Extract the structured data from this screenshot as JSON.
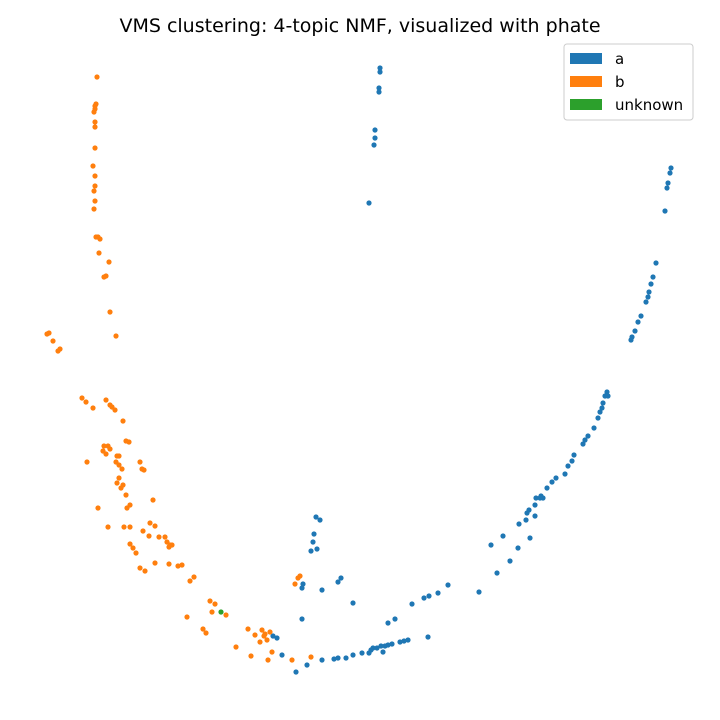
{
  "chart_data": {
    "type": "scatter",
    "title": "VMS clustering: 4-topic NMF, visualized with phate",
    "xlabel": "",
    "ylabel": "",
    "axes_visible": false,
    "grid": false,
    "legend_position": "top-right",
    "series": [
      {
        "name": "a",
        "color": "#1f77b4",
        "points": [
          [
            380,
            68
          ],
          [
            380,
            72
          ],
          [
            379,
            88
          ],
          [
            379,
            92
          ],
          [
            375,
            130
          ],
          [
            375,
            138
          ],
          [
            374,
            145
          ],
          [
            369,
            203
          ],
          [
            671,
            168
          ],
          [
            670,
            173
          ],
          [
            668,
            183
          ],
          [
            667,
            188
          ],
          [
            665,
            211
          ],
          [
            656,
            263
          ],
          [
            653,
            277
          ],
          [
            651,
            284
          ],
          [
            649,
            292
          ],
          [
            648,
            297
          ],
          [
            646,
            302
          ],
          [
            641,
            316
          ],
          [
            638,
            322
          ],
          [
            635,
            331
          ],
          [
            632,
            337
          ],
          [
            631,
            340
          ],
          [
            607,
            392
          ],
          [
            605,
            396
          ],
          [
            608,
            396
          ],
          [
            603,
            403
          ],
          [
            602,
            408
          ],
          [
            600,
            412
          ],
          [
            598,
            418
          ],
          [
            594,
            428
          ],
          [
            588,
            436
          ],
          [
            585,
            440
          ],
          [
            583,
            444
          ],
          [
            574,
            455
          ],
          [
            572,
            461
          ],
          [
            568,
            466
          ],
          [
            565,
            474
          ],
          [
            556,
            478
          ],
          [
            552,
            482
          ],
          [
            547,
            488
          ],
          [
            541,
            496
          ],
          [
            536,
            498
          ],
          [
            540,
            498
          ],
          [
            543,
            498
          ],
          [
            535,
            505
          ],
          [
            529,
            510
          ],
          [
            527,
            513
          ],
          [
            535,
            516
          ],
          [
            526,
            520
          ],
          [
            519,
            524
          ],
          [
            503,
            536
          ],
          [
            491,
            545
          ],
          [
            518,
            548
          ],
          [
            530,
            538
          ],
          [
            510,
            561
          ],
          [
            497,
            573
          ],
          [
            479,
            592
          ],
          [
            448,
            585
          ],
          [
            438,
            593
          ],
          [
            429,
            596
          ],
          [
            424,
            598
          ],
          [
            412,
            604
          ],
          [
            395,
            619
          ],
          [
            388,
            623
          ],
          [
            428,
            637
          ],
          [
            408,
            640
          ],
          [
            404,
            641
          ],
          [
            400,
            642
          ],
          [
            392,
            644
          ],
          [
            388,
            645
          ],
          [
            385,
            646
          ],
          [
            381,
            646
          ],
          [
            377,
            648
          ],
          [
            373,
            648
          ],
          [
            371,
            650
          ],
          [
            369,
            653
          ],
          [
            383,
            652
          ],
          [
            362,
            653
          ],
          [
            353,
            655
          ],
          [
            346,
            658
          ],
          [
            338,
            658
          ],
          [
            334,
            659
          ],
          [
            322,
            660
          ],
          [
            307,
            665
          ],
          [
            296,
            672
          ],
          [
            277,
            638
          ],
          [
            273,
            636
          ],
          [
            282,
            655
          ],
          [
            320,
            520
          ],
          [
            316,
            517
          ],
          [
            314,
            534
          ],
          [
            313,
            542
          ],
          [
            317,
            549
          ],
          [
            311,
            551
          ],
          [
            303,
            584
          ],
          [
            302,
            588
          ],
          [
            341,
            578
          ],
          [
            338,
            582
          ],
          [
            322,
            590
          ],
          [
            353,
            603
          ],
          [
            302,
            619
          ]
        ]
      },
      {
        "name": "b",
        "color": "#ff7f0e",
        "points": [
          [
            97,
            77
          ],
          [
            95,
            106
          ],
          [
            96,
            104
          ],
          [
            95,
            109
          ],
          [
            94,
            112
          ],
          [
            95,
            122
          ],
          [
            95,
            127
          ],
          [
            95,
            148
          ],
          [
            93,
            166
          ],
          [
            95,
            176
          ],
          [
            95,
            186
          ],
          [
            94,
            191
          ],
          [
            95,
            201
          ],
          [
            94,
            209
          ],
          [
            96,
            237
          ],
          [
            98,
            237
          ],
          [
            100,
            239
          ],
          [
            99,
            253
          ],
          [
            109,
            262
          ],
          [
            104,
            277
          ],
          [
            106,
            276
          ],
          [
            110,
            312
          ],
          [
            116,
            336
          ],
          [
            47,
            334
          ],
          [
            49,
            333
          ],
          [
            53,
            341
          ],
          [
            60,
            349
          ],
          [
            58,
            351
          ],
          [
            82,
            398
          ],
          [
            86,
            402
          ],
          [
            93,
            408
          ],
          [
            106,
            400
          ],
          [
            110,
            405
          ],
          [
            112,
            407
          ],
          [
            115,
            410
          ],
          [
            123,
            421
          ],
          [
            126,
            441
          ],
          [
            129,
            442
          ],
          [
            104,
            446
          ],
          [
            108,
            446
          ],
          [
            110,
            449
          ],
          [
            103,
            451
          ],
          [
            106,
            454
          ],
          [
            117,
            456
          ],
          [
            119,
            456
          ],
          [
            87,
            462
          ],
          [
            116,
            462
          ],
          [
            119,
            465
          ],
          [
            122,
            469
          ],
          [
            140,
            462
          ],
          [
            142,
            469
          ],
          [
            144,
            470
          ],
          [
            119,
            478
          ],
          [
            117,
            483
          ],
          [
            123,
            485
          ],
          [
            121,
            488
          ],
          [
            126,
            495
          ],
          [
            130,
            505
          ],
          [
            127,
            508
          ],
          [
            98,
            508
          ],
          [
            153,
            500
          ],
          [
            108,
            527
          ],
          [
            124,
            527
          ],
          [
            130,
            527
          ],
          [
            150,
            523
          ],
          [
            155,
            526
          ],
          [
            143,
            531
          ],
          [
            149,
            536
          ],
          [
            159,
            537
          ],
          [
            165,
            537
          ],
          [
            130,
            544
          ],
          [
            133,
            548
          ],
          [
            167,
            542
          ],
          [
            170,
            545
          ],
          [
            169,
            547
          ],
          [
            172,
            545
          ],
          [
            136,
            553
          ],
          [
            155,
            563
          ],
          [
            169,
            564
          ],
          [
            178,
            566
          ],
          [
            182,
            565
          ],
          [
            140,
            568
          ],
          [
            145,
            571
          ],
          [
            194,
            577
          ],
          [
            190,
            581
          ],
          [
            300,
            576
          ],
          [
            298,
            578
          ],
          [
            295,
            584
          ],
          [
            210,
            601
          ],
          [
            215,
            604
          ],
          [
            212,
            612
          ],
          [
            226,
            615
          ],
          [
            187,
            617
          ],
          [
            203,
            629
          ],
          [
            206,
            633
          ],
          [
            248,
            629
          ],
          [
            255,
            635
          ],
          [
            262,
            630
          ],
          [
            265,
            634
          ],
          [
            270,
            632
          ],
          [
            264,
            636
          ],
          [
            267,
            640
          ],
          [
            260,
            642
          ],
          [
            236,
            647
          ],
          [
            272,
            652
          ],
          [
            251,
            656
          ],
          [
            311,
            657
          ],
          [
            292,
            660
          ],
          [
            268,
            660
          ]
        ]
      },
      {
        "name": "unknown",
        "color": "#2ca02c",
        "points": [
          [
            221,
            612
          ]
        ]
      }
    ]
  }
}
